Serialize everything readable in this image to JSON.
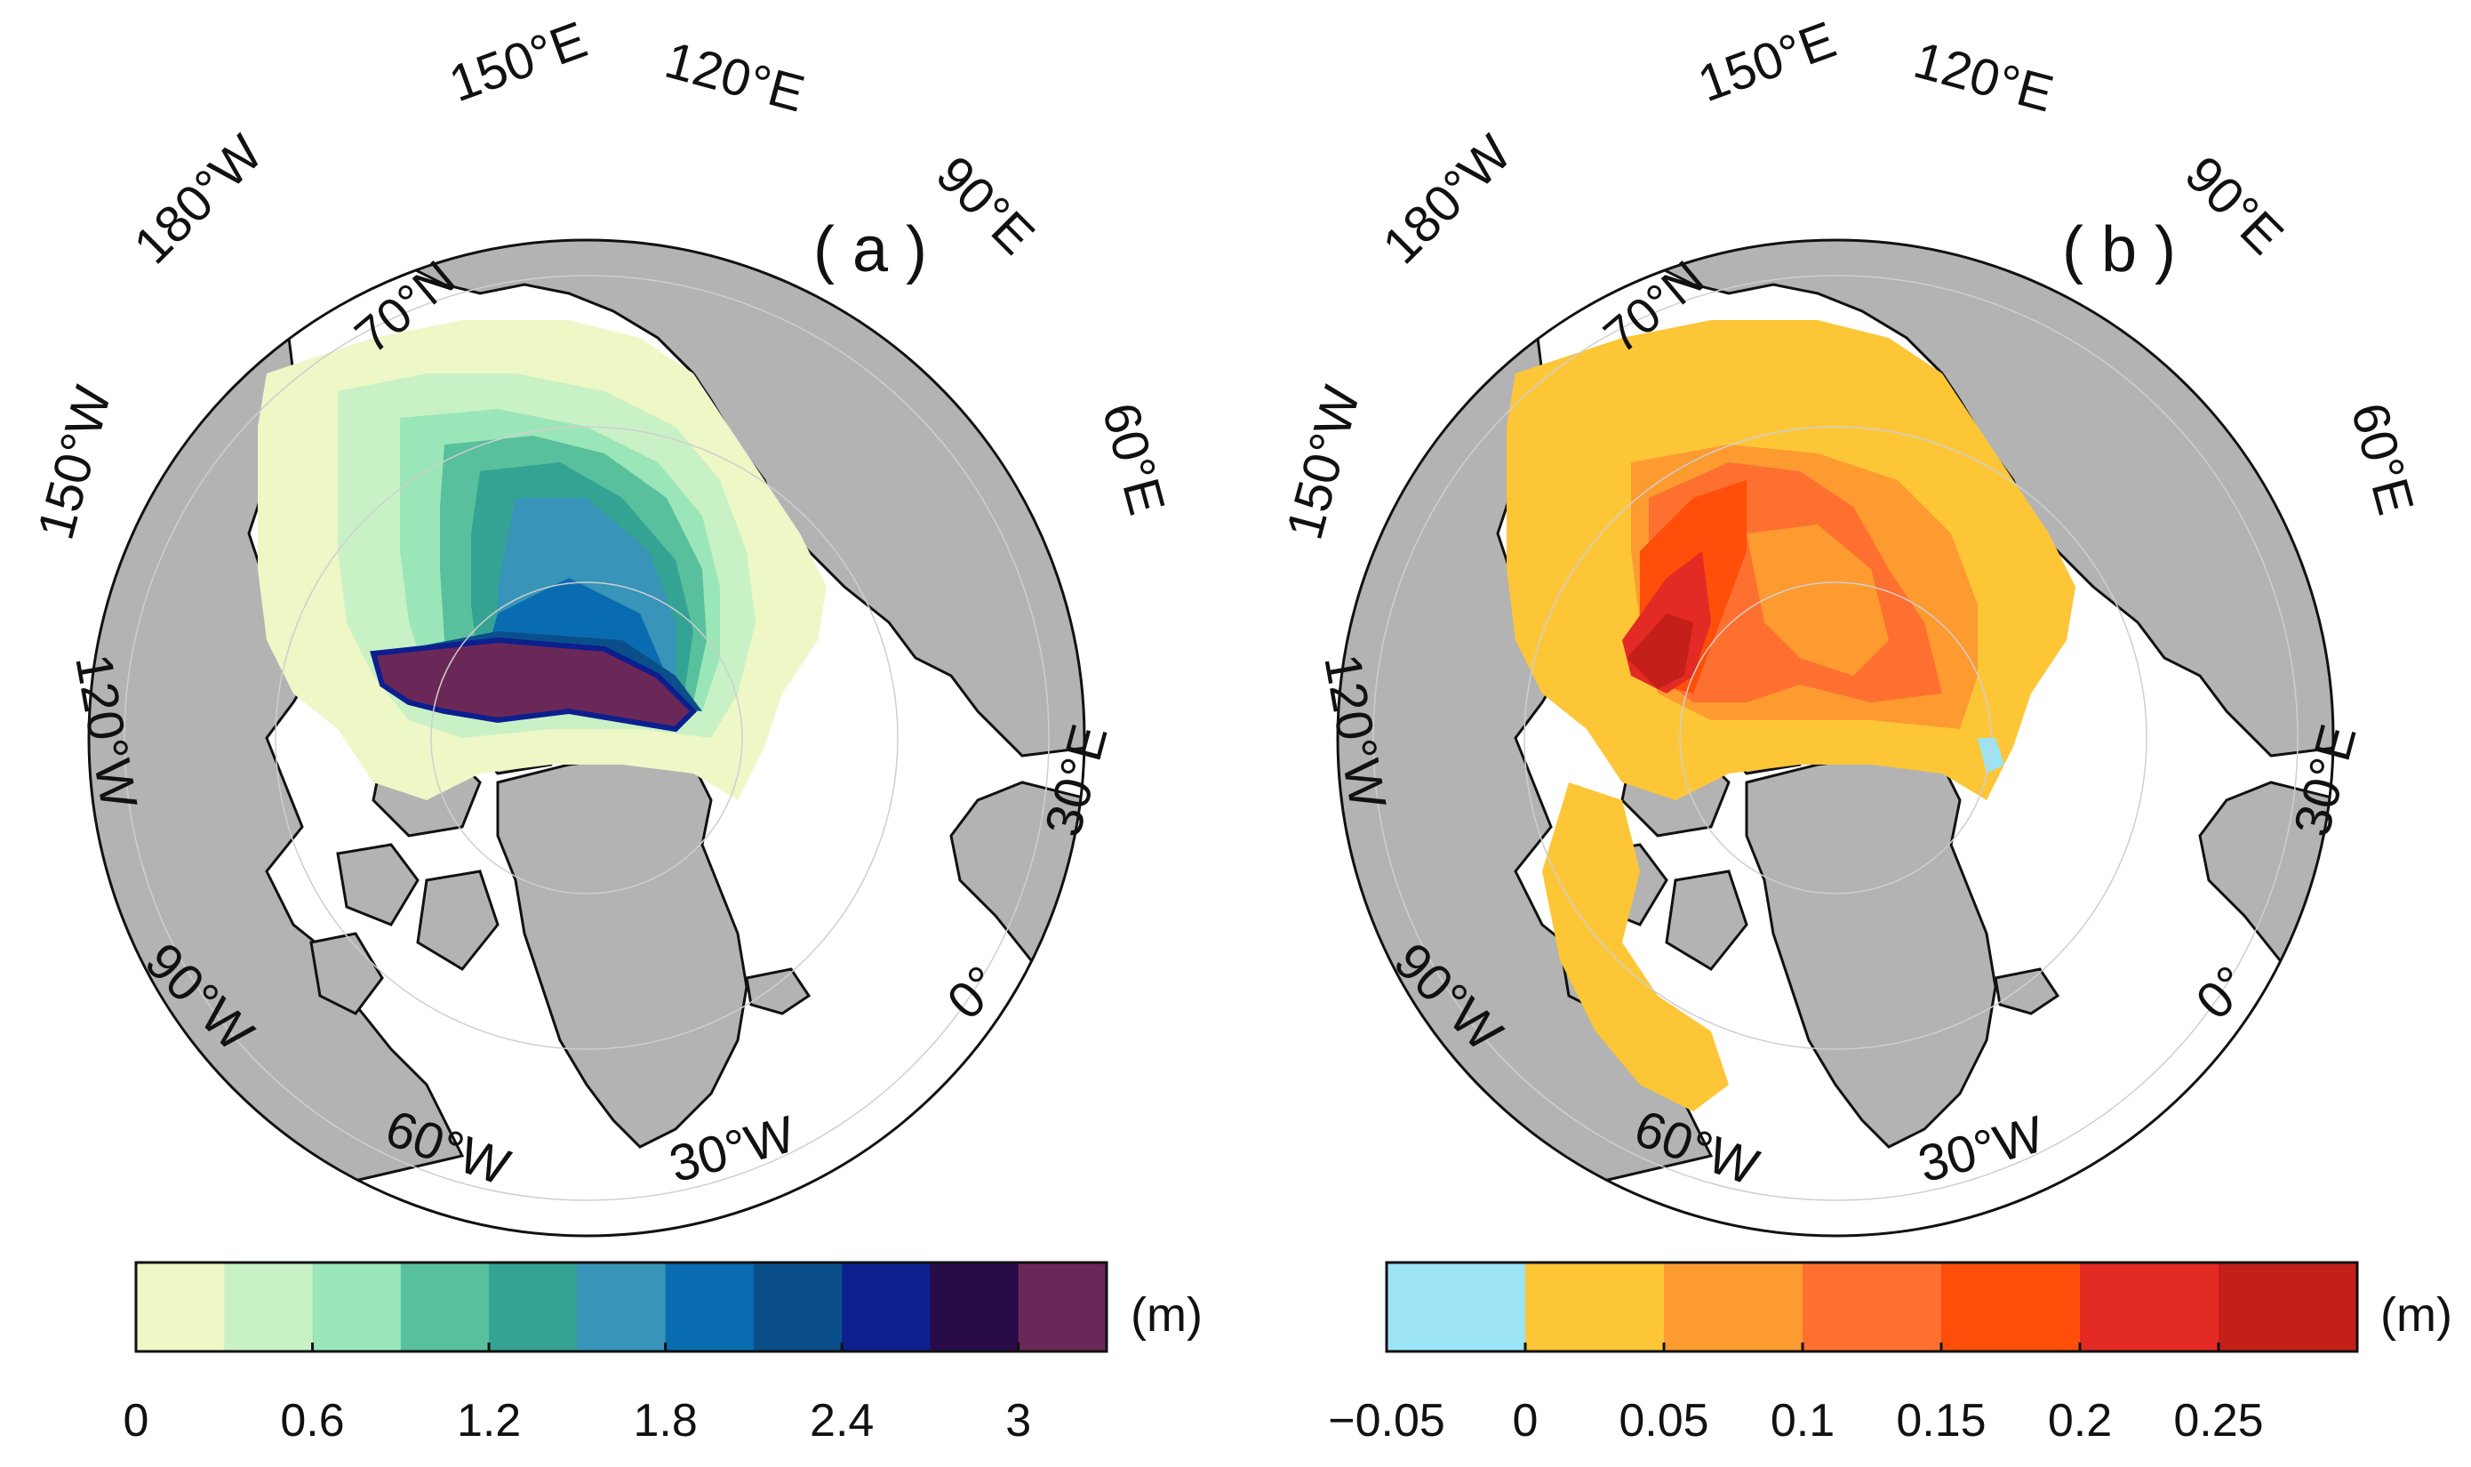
{
  "panels": [
    {
      "id": "a",
      "panel_label": "( a )",
      "lon_labels": [
        "150°E",
        "120°E",
        "90°E",
        "60°E",
        "30°E",
        "0°",
        "30°W",
        "60°W",
        "90°W",
        "120°W",
        "150°W",
        "180°W"
      ],
      "lat_label": "70°N",
      "colorbar": {
        "unit": "(m)",
        "tick_labels": [
          "0",
          "0.6",
          "1.2",
          "1.8",
          "2.4",
          "3"
        ],
        "colors": [
          "#eef7c6",
          "#c9f1c6",
          "#9be6b8",
          "#58c09c",
          "#35a393",
          "#3894b8",
          "#0a6cb0",
          "#0a4f8a",
          "#0c1f8f",
          "#280a46",
          "#6a2858"
        ]
      }
    },
    {
      "id": "b",
      "panel_label": "( b )",
      "lon_labels": [
        "150°E",
        "120°E",
        "90°E",
        "60°E",
        "30°E",
        "0°",
        "30°W",
        "60°W",
        "90°W",
        "120°W",
        "150°W",
        "180°W"
      ],
      "lat_label": "70°N",
      "colorbar": {
        "unit": "(m)",
        "tick_labels": [
          "−0.05",
          "0",
          "0.05",
          "0.1",
          "0.15",
          "0.2",
          "0.25"
        ],
        "colors": [
          "#9ce3f6",
          "#fdc637",
          "#fe9b30",
          "#fe7030",
          "#fe4e0a",
          "#e42a24",
          "#c41f18"
        ]
      }
    }
  ]
}
